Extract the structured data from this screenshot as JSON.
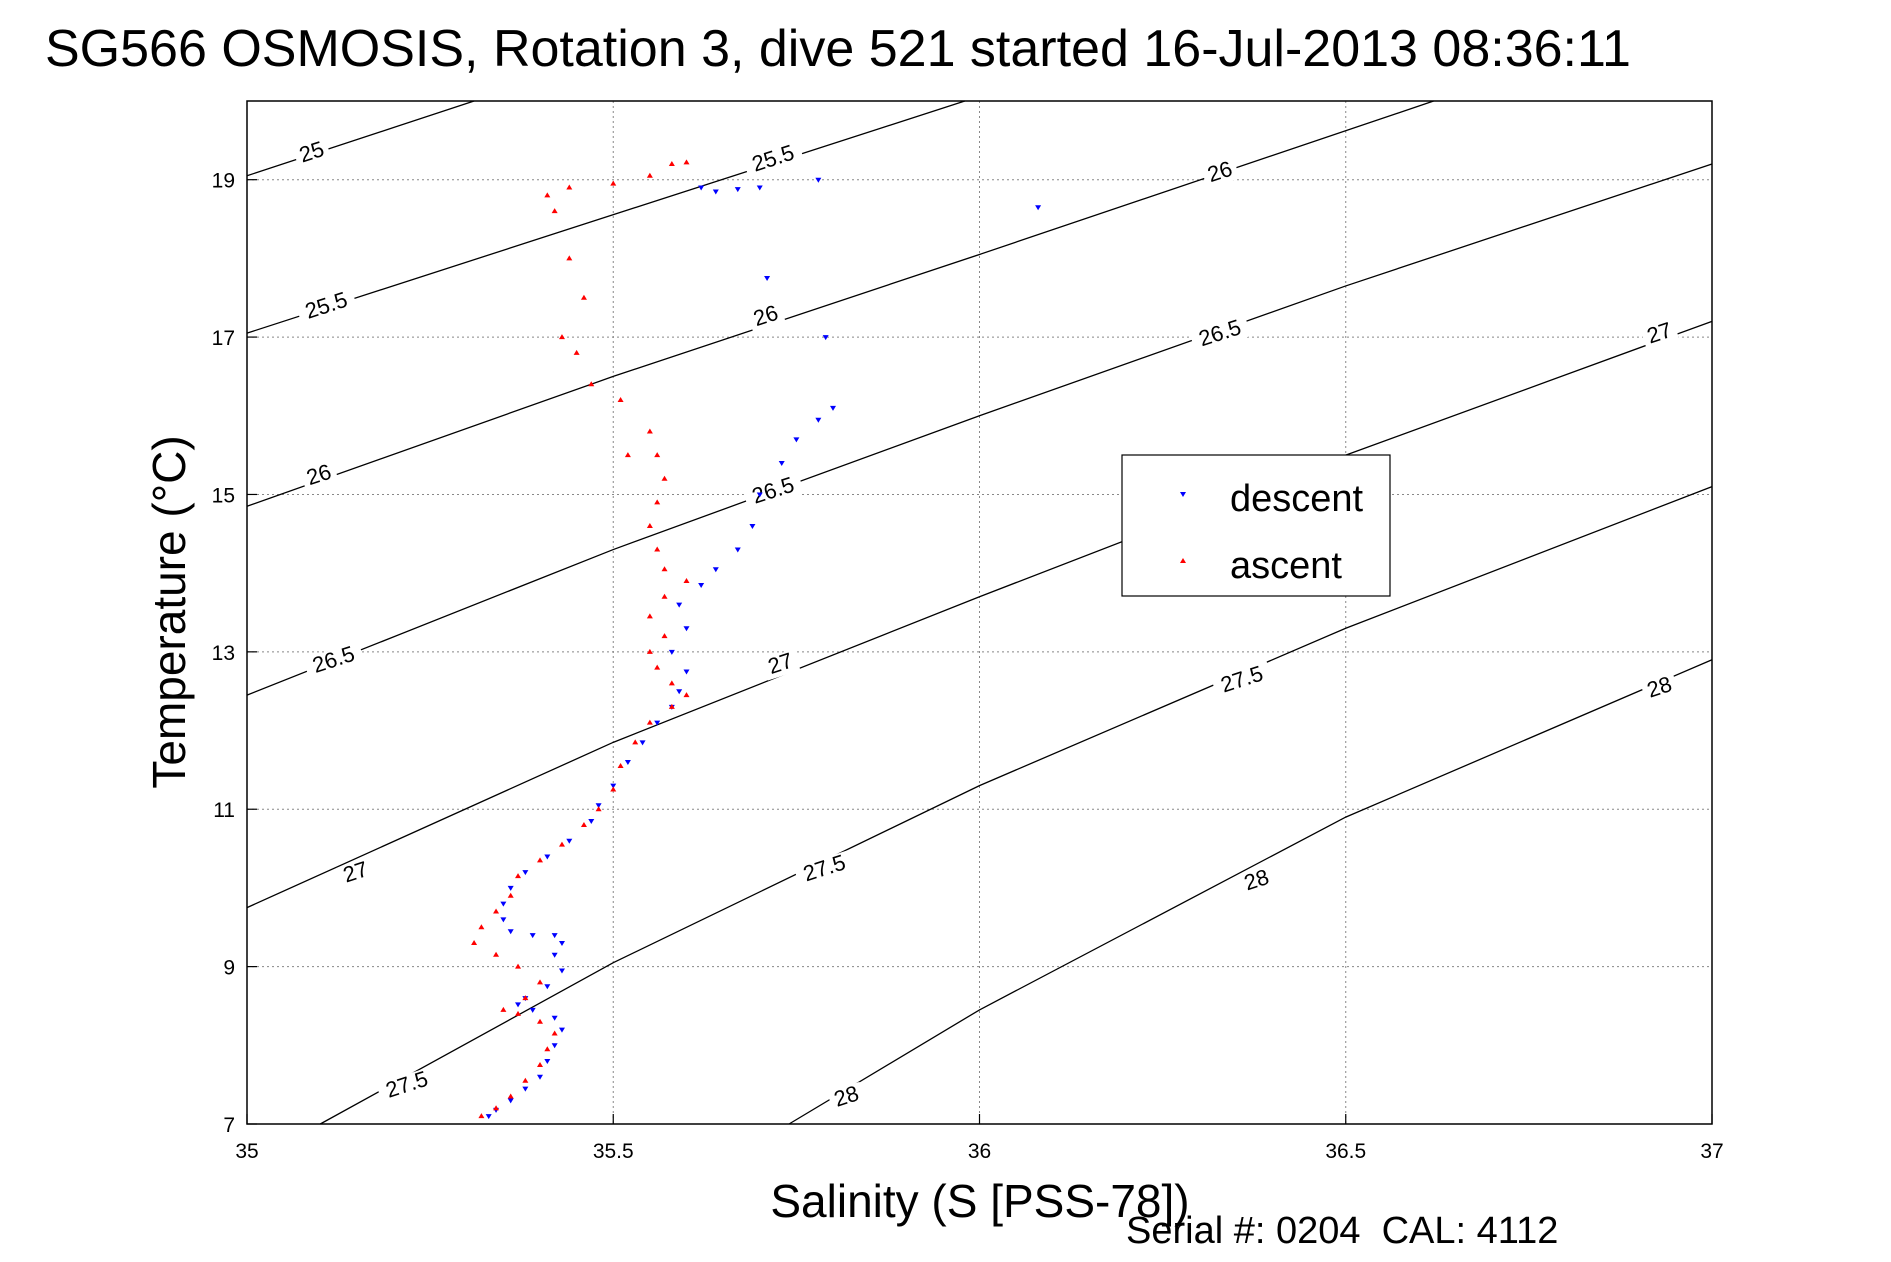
{
  "chart_data": {
    "type": "scatter",
    "title": "SG566 OSMOSIS, Rotation 3, dive 521 started 16-Jul-2013 08:36:11",
    "xlabel": "Salinity (S [PSS-78])",
    "ylabel": "Temperature (°C)",
    "xlim": [
      35,
      37
    ],
    "ylim": [
      7,
      20
    ],
    "xticks": [
      "35",
      "35.5",
      "36",
      "36.5",
      "37"
    ],
    "xtick_values": [
      35,
      35.5,
      36,
      36.5,
      37
    ],
    "yticks": [
      "7",
      "9",
      "11",
      "13",
      "15",
      "17",
      "19"
    ],
    "ytick_values": [
      7,
      9,
      11,
      13,
      15,
      17,
      19
    ],
    "grid": true,
    "legend_position": "center-right",
    "footer": "Serial #: 0204  CAL: 4112",
    "contours": [
      {
        "label": "25",
        "line": [
          [
            35,
            19.05
          ],
          [
            35.31,
            20.0
          ]
        ],
        "label_at": [
          35.09,
          19.3
        ]
      },
      {
        "label": "25.5",
        "line": [
          [
            35,
            17.05
          ],
          [
            35.98,
            20.0
          ]
        ],
        "label_at": [
          35.11,
          17.35
        ]
      },
      {
        "label": "25.5",
        "line": [
          [
            35,
            17.05
          ],
          [
            35.98,
            20.0
          ]
        ],
        "label_at": [
          35.72,
          19.22
        ]
      },
      {
        "label": "26",
        "line": [
          [
            35,
            14.85
          ],
          [
            35.5,
            16.5
          ],
          [
            36,
            18.05
          ],
          [
            36.62,
            20.0
          ]
        ],
        "label_at": [
          35.1,
          15.2
        ]
      },
      {
        "label": "26",
        "line": [
          [
            35,
            14.85
          ],
          [
            35.5,
            16.5
          ],
          [
            36,
            18.05
          ],
          [
            36.62,
            20.0
          ]
        ],
        "label_at": [
          35.71,
          17.22
        ]
      },
      {
        "label": "26",
        "line": [
          [
            35,
            14.85
          ],
          [
            35.5,
            16.5
          ],
          [
            36,
            18.05
          ],
          [
            36.62,
            20.0
          ]
        ],
        "label_at": [
          36.33,
          19.05
        ]
      },
      {
        "label": "26.5",
        "line": [
          [
            35,
            12.45
          ],
          [
            35.5,
            14.3
          ],
          [
            36,
            16.0
          ],
          [
            36.5,
            17.65
          ],
          [
            37,
            19.2
          ]
        ],
        "label_at": [
          35.12,
          12.85
        ]
      },
      {
        "label": "26.5",
        "line": [
          [
            35,
            12.45
          ],
          [
            35.5,
            14.3
          ],
          [
            36,
            16.0
          ],
          [
            36.5,
            17.65
          ],
          [
            37,
            19.2
          ]
        ],
        "label_at": [
          35.72,
          15.0
        ]
      },
      {
        "label": "26.5",
        "line": [
          [
            35,
            12.45
          ],
          [
            35.5,
            14.3
          ],
          [
            36,
            16.0
          ],
          [
            36.5,
            17.65
          ],
          [
            37,
            19.2
          ]
        ],
        "label_at": [
          36.33,
          17.0
        ]
      },
      {
        "label": "27",
        "line": [
          [
            35,
            9.75
          ],
          [
            35.5,
            11.85
          ],
          [
            36,
            13.7
          ],
          [
            36.5,
            15.5
          ],
          [
            37,
            17.2
          ]
        ],
        "label_at": [
          35.15,
          10.15
        ]
      },
      {
        "label": "27",
        "line": [
          [
            35,
            9.75
          ],
          [
            35.5,
            11.85
          ],
          [
            36,
            13.7
          ],
          [
            36.5,
            15.5
          ],
          [
            37,
            17.2
          ]
        ],
        "label_at": [
          35.73,
          12.8
        ]
      },
      {
        "label": "27",
        "line": [
          [
            35,
            9.75
          ],
          [
            35.5,
            11.85
          ],
          [
            36,
            13.7
          ],
          [
            36.5,
            15.5
          ],
          [
            37,
            17.2
          ]
        ],
        "label_at": [
          36.93,
          17.0
        ]
      },
      {
        "label": "27.5",
        "line": [
          [
            35.1,
            7.0
          ],
          [
            35.5,
            9.05
          ],
          [
            36,
            11.3
          ],
          [
            36.5,
            13.3
          ],
          [
            37,
            15.1
          ]
        ],
        "label_at": [
          35.22,
          7.45
        ]
      },
      {
        "label": "27.5",
        "line": [
          [
            35.1,
            7.0
          ],
          [
            35.5,
            9.05
          ],
          [
            36,
            11.3
          ],
          [
            36.5,
            13.3
          ],
          [
            37,
            15.1
          ]
        ],
        "label_at": [
          35.79,
          10.2
        ]
      },
      {
        "label": "27.5",
        "line": [
          [
            35.1,
            7.0
          ],
          [
            35.5,
            9.05
          ],
          [
            36,
            11.3
          ],
          [
            36.5,
            13.3
          ],
          [
            37,
            15.1
          ]
        ],
        "label_at": [
          36.36,
          12.6
        ]
      },
      {
        "label": "28",
        "line": [
          [
            35.74,
            7.0
          ],
          [
            36,
            8.45
          ],
          [
            36.5,
            10.9
          ],
          [
            37,
            12.9
          ]
        ],
        "label_at": [
          35.82,
          7.3
        ]
      },
      {
        "label": "28",
        "line": [
          [
            35.74,
            7.0
          ],
          [
            36,
            8.45
          ],
          [
            36.5,
            10.9
          ],
          [
            37,
            12.9
          ]
        ],
        "label_at": [
          36.38,
          10.05
        ]
      },
      {
        "label": "28",
        "line": [
          [
            35.74,
            7.0
          ],
          [
            36,
            8.45
          ],
          [
            36.5,
            10.9
          ],
          [
            37,
            12.9
          ]
        ],
        "label_at": [
          36.93,
          12.5
        ]
      }
    ],
    "series": [
      {
        "name": "descent",
        "color": "#0000ff",
        "marker": "triangle-down",
        "points": [
          [
            35.33,
            7.1
          ],
          [
            35.34,
            7.18
          ],
          [
            35.36,
            7.3
          ],
          [
            35.38,
            7.45
          ],
          [
            35.4,
            7.6
          ],
          [
            35.41,
            7.8
          ],
          [
            35.42,
            8.0
          ],
          [
            35.43,
            8.2
          ],
          [
            35.42,
            8.35
          ],
          [
            35.39,
            8.45
          ],
          [
            35.37,
            8.52
          ],
          [
            35.38,
            8.6
          ],
          [
            35.41,
            8.75
          ],
          [
            35.43,
            8.95
          ],
          [
            35.42,
            9.15
          ],
          [
            35.43,
            9.3
          ],
          [
            35.42,
            9.4
          ],
          [
            35.39,
            9.4
          ],
          [
            35.36,
            9.45
          ],
          [
            35.35,
            9.6
          ],
          [
            35.35,
            9.8
          ],
          [
            35.36,
            10.0
          ],
          [
            35.38,
            10.2
          ],
          [
            35.41,
            10.4
          ],
          [
            35.44,
            10.6
          ],
          [
            35.47,
            10.85
          ],
          [
            35.48,
            11.05
          ],
          [
            35.5,
            11.3
          ],
          [
            35.52,
            11.6
          ],
          [
            35.54,
            11.85
          ],
          [
            35.56,
            12.1
          ],
          [
            35.58,
            12.3
          ],
          [
            35.59,
            12.5
          ],
          [
            35.6,
            12.75
          ],
          [
            35.58,
            13.0
          ],
          [
            35.6,
            13.3
          ],
          [
            35.59,
            13.6
          ],
          [
            35.62,
            13.85
          ],
          [
            35.64,
            14.05
          ],
          [
            35.67,
            14.3
          ],
          [
            35.69,
            14.6
          ],
          [
            35.7,
            15.0
          ],
          [
            35.73,
            15.4
          ],
          [
            35.75,
            15.7
          ],
          [
            35.78,
            15.95
          ],
          [
            35.8,
            16.1
          ],
          [
            35.79,
            17.0
          ],
          [
            35.71,
            17.75
          ],
          [
            36.08,
            18.65
          ],
          [
            35.64,
            18.85
          ],
          [
            35.67,
            18.88
          ],
          [
            35.7,
            18.9
          ],
          [
            35.78,
            19.0
          ],
          [
            35.62,
            18.9
          ]
        ]
      },
      {
        "name": "ascent",
        "color": "#ff0000",
        "marker": "triangle-up",
        "points": [
          [
            35.32,
            7.1
          ],
          [
            35.34,
            7.2
          ],
          [
            35.36,
            7.35
          ],
          [
            35.38,
            7.55
          ],
          [
            35.4,
            7.75
          ],
          [
            35.41,
            7.95
          ],
          [
            35.42,
            8.15
          ],
          [
            35.4,
            8.3
          ],
          [
            35.37,
            8.4
          ],
          [
            35.35,
            8.45
          ],
          [
            35.38,
            8.6
          ],
          [
            35.4,
            8.8
          ],
          [
            35.37,
            9.0
          ],
          [
            35.34,
            9.15
          ],
          [
            35.31,
            9.3
          ],
          [
            35.32,
            9.5
          ],
          [
            35.34,
            9.7
          ],
          [
            35.36,
            9.9
          ],
          [
            35.37,
            10.15
          ],
          [
            35.4,
            10.35
          ],
          [
            35.43,
            10.55
          ],
          [
            35.46,
            10.8
          ],
          [
            35.48,
            11.0
          ],
          [
            35.5,
            11.25
          ],
          [
            35.51,
            11.55
          ],
          [
            35.53,
            11.85
          ],
          [
            35.55,
            12.1
          ],
          [
            35.58,
            12.3
          ],
          [
            35.6,
            12.45
          ],
          [
            35.58,
            12.6
          ],
          [
            35.56,
            12.8
          ],
          [
            35.55,
            13.0
          ],
          [
            35.57,
            13.2
          ],
          [
            35.55,
            13.45
          ],
          [
            35.57,
            13.7
          ],
          [
            35.6,
            13.9
          ],
          [
            35.57,
            14.05
          ],
          [
            35.56,
            14.3
          ],
          [
            35.55,
            14.6
          ],
          [
            35.56,
            14.9
          ],
          [
            35.57,
            15.2
          ],
          [
            35.56,
            15.5
          ],
          [
            35.55,
            15.8
          ],
          [
            35.52,
            15.5
          ],
          [
            35.51,
            16.2
          ],
          [
            35.47,
            16.4
          ],
          [
            35.45,
            16.8
          ],
          [
            35.43,
            17.0
          ],
          [
            35.46,
            17.5
          ],
          [
            35.44,
            18.0
          ],
          [
            35.42,
            18.6
          ],
          [
            35.41,
            18.8
          ],
          [
            35.44,
            18.9
          ],
          [
            35.5,
            18.95
          ],
          [
            35.55,
            19.05
          ],
          [
            35.58,
            19.2
          ],
          [
            35.6,
            19.22
          ]
        ]
      }
    ]
  }
}
